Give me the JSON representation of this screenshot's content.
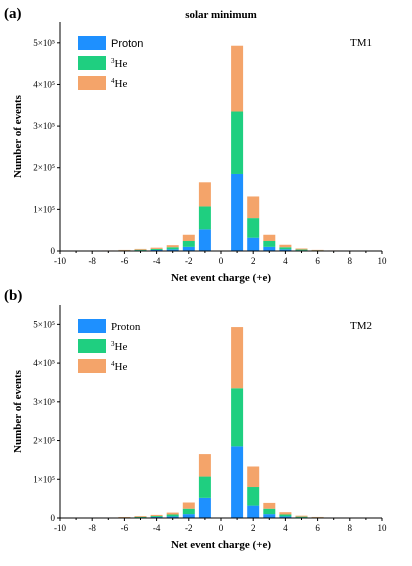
{
  "chart_data": [
    {
      "type": "bar",
      "stacked": true,
      "panel_label": "(a)",
      "title": "solar minimum",
      "box_label": "TM1",
      "xlabel": "Net event charge (+e)",
      "ylabel": "Number of events",
      "xlim": [
        -10,
        10
      ],
      "ylim": [
        0,
        550000
      ],
      "x_ticks": [
        "-10",
        "-8",
        "-6",
        "-4",
        "-2",
        "0",
        "2",
        "4",
        "6",
        "8",
        "10"
      ],
      "y_ticks": [
        "0",
        "1×10⁵",
        "2×10⁵",
        "3×10⁵",
        "4×10⁵",
        "5×10⁵"
      ],
      "legend_position": "top-left",
      "x": [
        -8,
        -7,
        -6,
        -5,
        -4,
        -3,
        -2,
        -1,
        1,
        2,
        3,
        4,
        5,
        6,
        7,
        8
      ],
      "series": [
        {
          "name": "Proton",
          "color": "#1e90ff",
          "values": [
            200,
            400,
            800,
            1500,
            2500,
            4000,
            10000,
            52000,
            185000,
            32000,
            10000,
            4000,
            1500,
            800,
            400,
            200
          ]
        },
        {
          "name": "3He",
          "name_super": "3",
          "name_base": "He",
          "color": "#1fcf80",
          "values": [
            200,
            400,
            800,
            1500,
            2500,
            5000,
            14000,
            55000,
            150000,
            47000,
            14000,
            5000,
            2000,
            900,
            400,
            200
          ]
        },
        {
          "name": "4He",
          "name_super": "4",
          "name_base": "He",
          "color": "#f4a46a",
          "values": [
            300,
            500,
            1000,
            2000,
            3000,
            5000,
            15000,
            58000,
            158000,
            52000,
            15000,
            6000,
            2500,
            1000,
            500,
            300
          ]
        }
      ]
    },
    {
      "type": "bar",
      "stacked": true,
      "panel_label": "(b)",
      "title": "",
      "box_label": "TM2",
      "xlabel": "Net event charge (+e)",
      "ylabel": "Number of events",
      "xlim": [
        -10,
        10
      ],
      "ylim": [
        0,
        550000
      ],
      "x_ticks": [
        "-10",
        "-8",
        "-6",
        "-4",
        "-2",
        "0",
        "2",
        "4",
        "6",
        "8",
        "10"
      ],
      "y_ticks": [
        "0",
        "1×10⁵",
        "2×10⁵",
        "3×10⁵",
        "4×10⁵",
        "5×10⁵"
      ],
      "legend_position": "top-left",
      "x": [
        -8,
        -7,
        -6,
        -5,
        -4,
        -3,
        -2,
        -1,
        1,
        2,
        3,
        4,
        5,
        6,
        7,
        8
      ],
      "series": [
        {
          "name": "Proton",
          "color": "#1e90ff",
          "values": [
            200,
            400,
            800,
            1500,
            2500,
            4000,
            10000,
            52000,
            185000,
            32000,
            10000,
            4000,
            1500,
            800,
            400,
            200
          ]
        },
        {
          "name": "3He",
          "name_super": "3",
          "name_base": "He",
          "color": "#1fcf80",
          "values": [
            200,
            400,
            800,
            1500,
            2500,
            5000,
            14000,
            55000,
            150000,
            48000,
            14000,
            5000,
            2000,
            900,
            400,
            200
          ]
        },
        {
          "name": "4He",
          "name_super": "4",
          "name_base": "He",
          "color": "#f4a46a",
          "values": [
            300,
            500,
            1000,
            2000,
            3000,
            5000,
            16000,
            58000,
            158000,
            53000,
            15000,
            6000,
            2500,
            1000,
            500,
            300
          ]
        }
      ]
    }
  ]
}
